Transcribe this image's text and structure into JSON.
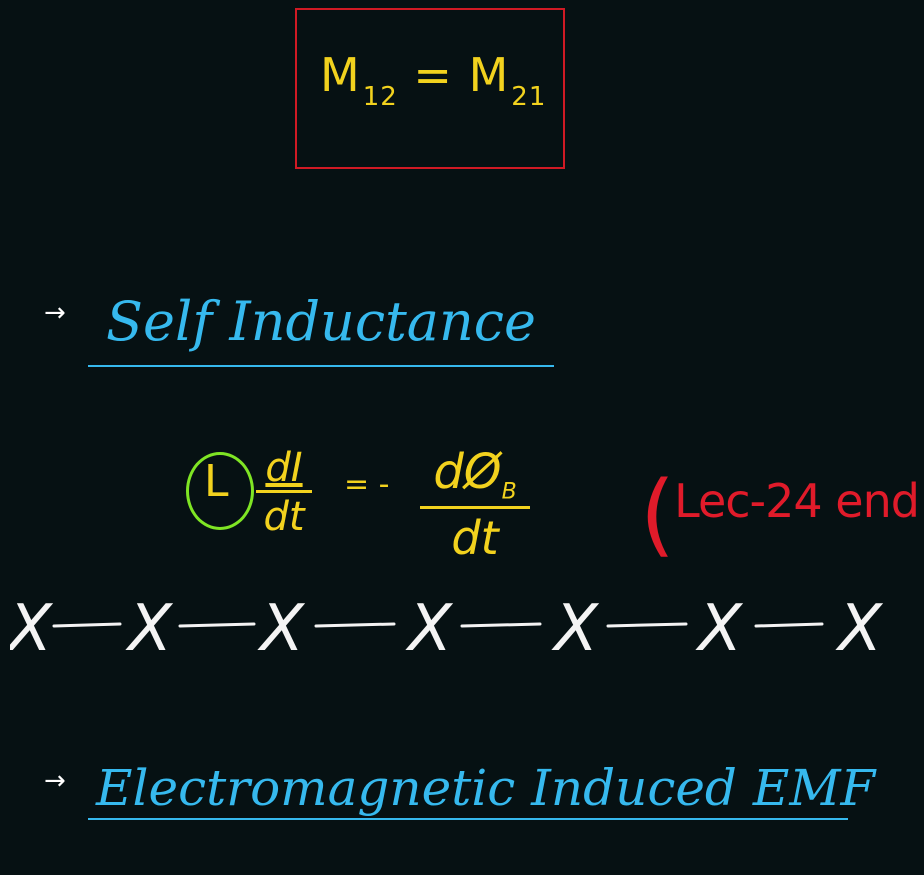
{
  "board": {
    "box_equation": {
      "lhs": "M",
      "lhs_sub": "12",
      "equals": "=",
      "rhs": "M",
      "rhs_sub": "21"
    },
    "arrow_symbol": "→",
    "heading_1": "Self Inductance",
    "formula": {
      "circled": "L",
      "frac1_num": "dI",
      "frac1_den": "dt",
      "relation": "= -",
      "frac2_num": "dØ",
      "frac2_num_sub": "B",
      "frac2_den": "dt"
    },
    "note": {
      "open": "(",
      "text": "Lec-24 end",
      "close": ")"
    },
    "divider_marks": [
      "X",
      "X",
      "X",
      "X",
      "X",
      "X",
      "X"
    ],
    "heading_2": "Electromagnetic Induced EMF"
  },
  "colors": {
    "background": "#061113",
    "yellow": "#f2d21e",
    "blue": "#36b9ee",
    "red": "#e01b2a",
    "green": "#7fe524",
    "white": "#ffffff"
  }
}
